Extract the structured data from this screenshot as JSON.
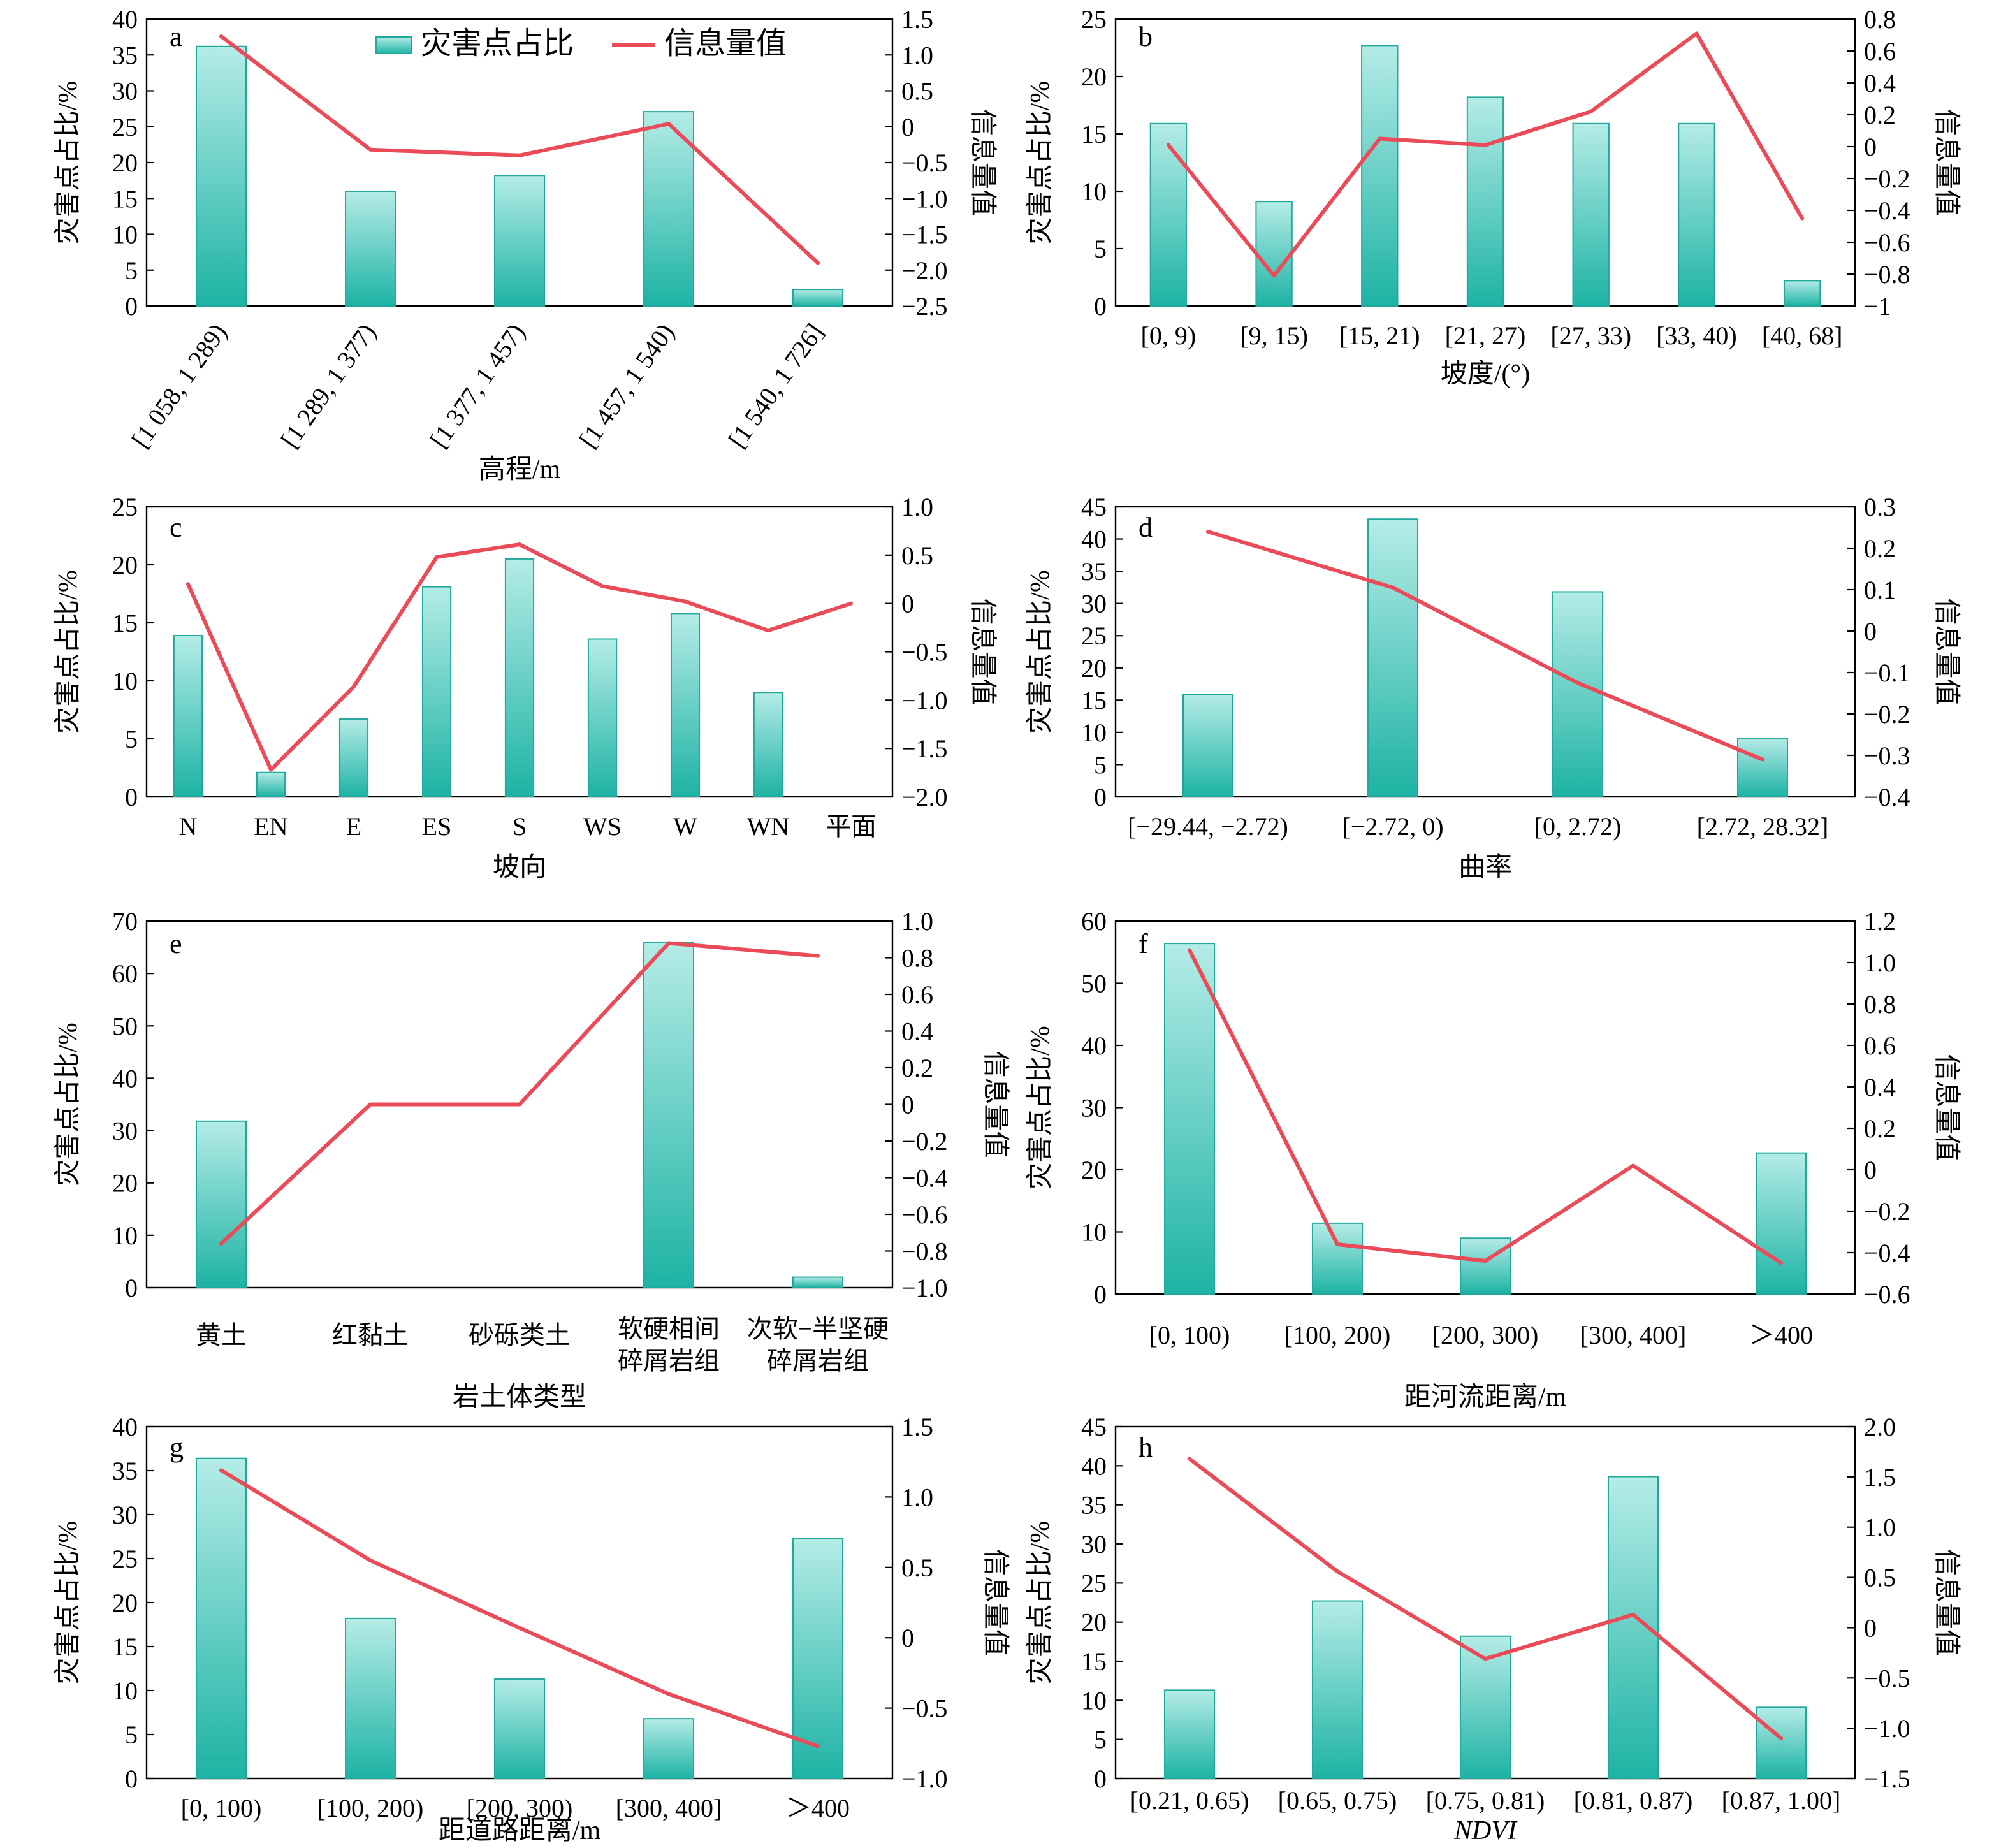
{
  "colors": {
    "bar_top": "#b5ece7",
    "bar_bottom": "#1db3a4",
    "bar_edge": "#22a89a",
    "line": "#ea4b59",
    "axis": "#000000"
  },
  "legend": {
    "bar": "灾害点占比",
    "line": "信息量值"
  },
  "chart_data": [
    {
      "type": "bar",
      "panel": "a",
      "title": "",
      "xlabel": "高程/m",
      "xlabel_italic": false,
      "ylabel": "灾害点占比/%",
      "y2label": "信息量值",
      "categories": [
        "[1 058, 1 289)",
        "[1 289, 1 377)",
        "[1 377, 1 457)",
        "[1 457, 1 540)",
        "[1 540, 1 726]"
      ],
      "category_label_rotated": true,
      "ylim": [
        0,
        40
      ],
      "yticks": [
        0,
        5,
        10,
        15,
        20,
        25,
        30,
        35,
        40
      ],
      "y2lim": [
        -2.5,
        1.5
      ],
      "y2ticks": [
        1.5,
        1.0,
        0.5,
        0,
        -0.5,
        -1.0,
        -1.5,
        -2.0,
        -2.5
      ],
      "y2ticklabels": [
        "1.5",
        "1.0",
        "0.5",
        "0",
        "−0.5",
        "−1.0",
        "−1.5",
        "−2.0",
        "−2.5"
      ],
      "series": [
        {
          "name": "灾害点占比",
          "type": "bar",
          "axis": "left",
          "values": [
            36.2,
            16.0,
            18.2,
            27.1,
            2.3
          ]
        },
        {
          "name": "信息量值",
          "type": "line",
          "axis": "right",
          "values": [
            1.26,
            -0.32,
            -0.4,
            0.04,
            -1.9
          ]
        }
      ],
      "legend_position": "top-center",
      "grid": false
    },
    {
      "type": "bar",
      "panel": "b",
      "title": "",
      "xlabel": "坡度/(°)",
      "xlabel_italic": false,
      "ylabel": "灾害点占比/%",
      "y2label": "信息量值",
      "categories": [
        "[0, 9)",
        "[9, 15)",
        "[15, 21)",
        "[21, 27)",
        "[27, 33)",
        "[33, 40)",
        "[40, 68]"
      ],
      "category_label_rotated": false,
      "ylim": [
        0,
        25
      ],
      "yticks": [
        0,
        5,
        10,
        15,
        20,
        25
      ],
      "y2lim": [
        -1.0,
        0.8
      ],
      "y2ticks": [
        0.8,
        0.6,
        0.4,
        0.2,
        0,
        -0.2,
        -0.4,
        -0.6,
        -0.8,
        -1.0
      ],
      "y2ticklabels": [
        "0.8",
        "0.6",
        "0.4",
        "0.2",
        "0",
        "−0.2",
        "−0.4",
        "−0.6",
        "−0.8",
        "−1"
      ],
      "series": [
        {
          "name": "灾害点占比",
          "type": "bar",
          "axis": "left",
          "values": [
            15.9,
            9.1,
            22.7,
            18.2,
            15.9,
            15.9,
            2.2
          ]
        },
        {
          "name": "信息量值",
          "type": "line",
          "axis": "right",
          "values": [
            0.01,
            -0.81,
            0.05,
            0.01,
            0.22,
            0.71,
            -0.45
          ]
        }
      ],
      "grid": false
    },
    {
      "type": "bar",
      "panel": "c",
      "title": "",
      "xlabel": "坡向",
      "xlabel_italic": false,
      "ylabel": "灾害点占比/%",
      "y2label": "信息量值",
      "categories": [
        "N",
        "EN",
        "E",
        "ES",
        "S",
        "WS",
        "W",
        "WN",
        "平面"
      ],
      "category_label_rotated": false,
      "ylim": [
        0,
        25
      ],
      "yticks": [
        0,
        5,
        10,
        15,
        20,
        25
      ],
      "y2lim": [
        -2.0,
        1.0
      ],
      "y2ticks": [
        1.0,
        0.5,
        0,
        -0.5,
        -1.0,
        -1.5,
        -2.0
      ],
      "y2ticklabels": [
        "1.0",
        "0.5",
        "0",
        "−0.5",
        "−1.0",
        "−1.5",
        "−2.0"
      ],
      "series": [
        {
          "name": "灾害点占比",
          "type": "bar",
          "axis": "left",
          "values": [
            13.9,
            2.1,
            6.7,
            18.1,
            20.5,
            13.6,
            15.8,
            9.0,
            null
          ]
        },
        {
          "name": "信息量值",
          "type": "line",
          "axis": "right",
          "values": [
            0.2,
            -1.72,
            -0.86,
            0.48,
            0.61,
            0.18,
            0.02,
            -0.28,
            0.0
          ]
        }
      ],
      "grid": false
    },
    {
      "type": "bar",
      "panel": "d",
      "title": "",
      "xlabel": "曲率",
      "xlabel_italic": false,
      "ylabel": "灾害点占比/%",
      "y2label": "信息量值",
      "categories": [
        "[−29.44, −2.72)",
        "[−2.72, 0)",
        "[0, 2.72)",
        "[2.72, 28.32]"
      ],
      "category_label_rotated": false,
      "ylim": [
        0,
        45
      ],
      "yticks": [
        0,
        5,
        10,
        15,
        20,
        25,
        30,
        35,
        40,
        45
      ],
      "y2lim": [
        -0.4,
        0.3
      ],
      "y2ticks": [
        0.3,
        0.2,
        0.1,
        0,
        -0.1,
        -0.2,
        -0.3,
        -0.4
      ],
      "y2ticklabels": [
        "0.3",
        "0.2",
        "0.1",
        "0",
        "−0.1",
        "−0.2",
        "−0.3",
        "−0.4"
      ],
      "series": [
        {
          "name": "灾害点占比",
          "type": "bar",
          "axis": "left",
          "values": [
            15.9,
            43.1,
            31.8,
            9.1
          ]
        },
        {
          "name": "信息量值",
          "type": "line",
          "axis": "right",
          "values": [
            0.24,
            0.105,
            -0.125,
            -0.31
          ]
        }
      ],
      "grid": false
    },
    {
      "type": "bar",
      "panel": "e",
      "title": "",
      "xlabel": "岩土体类型",
      "xlabel_italic": false,
      "ylabel": "灾害点占比/%",
      "y2label": "信息量值",
      "categories": [
        "黄土",
        "红黏土",
        "砂砾类土",
        "软硬相间\n碎屑岩组",
        "次软−半坚硬\n碎屑岩组"
      ],
      "category_label_rotated": false,
      "ylim": [
        0,
        70
      ],
      "yticks": [
        0,
        10,
        20,
        30,
        40,
        50,
        60,
        70
      ],
      "y2lim": [
        -1.0,
        1.0
      ],
      "y2ticks": [
        1.0,
        0.8,
        0.6,
        0.4,
        0.2,
        0,
        -0.2,
        -0.4,
        -0.6,
        -0.8,
        -1.0
      ],
      "y2ticklabels": [
        "1.0",
        "0.8",
        "0.6",
        "0.4",
        "0.2",
        "0",
        "−0.2",
        "−0.4",
        "−0.6",
        "−0.8",
        "−1.0"
      ],
      "series": [
        {
          "name": "灾害点占比",
          "type": "bar",
          "axis": "left",
          "values": [
            31.8,
            0,
            0,
            65.9,
            2.0
          ]
        },
        {
          "name": "信息量值",
          "type": "line",
          "axis": "right",
          "values": [
            -0.76,
            0.0,
            0.0,
            0.88,
            0.81
          ]
        }
      ],
      "grid": false
    },
    {
      "type": "bar",
      "panel": "f",
      "title": "",
      "xlabel": "距河流距离/m",
      "xlabel_italic": false,
      "ylabel": "灾害点占比/%",
      "y2label": "信息量值",
      "categories": [
        "[0, 100)",
        "[100, 200)",
        "[200, 300)",
        "[300, 400]",
        "＞400"
      ],
      "category_label_rotated": false,
      "ylim": [
        0,
        60
      ],
      "yticks": [
        0,
        10,
        20,
        30,
        40,
        50,
        60
      ],
      "y2lim": [
        -0.6,
        1.2
      ],
      "y2ticks": [
        1.2,
        1.0,
        0.8,
        0.6,
        0.4,
        0.2,
        0,
        -0.2,
        -0.4,
        -0.6
      ],
      "y2ticklabels": [
        "1.2",
        "1.0",
        "0.8",
        "0.6",
        "0.4",
        "0.2",
        "0",
        "−0.2",
        "−0.4",
        "−0.6"
      ],
      "series": [
        {
          "name": "灾害点占比",
          "type": "bar",
          "axis": "left",
          "values": [
            56.4,
            11.4,
            9.0,
            0,
            22.7
          ]
        },
        {
          "name": "信息量值",
          "type": "line",
          "axis": "right",
          "values": [
            1.06,
            -0.36,
            -0.44,
            0.02,
            -0.45
          ]
        }
      ],
      "grid": false
    },
    {
      "type": "bar",
      "panel": "g",
      "title": "",
      "xlabel": "距道路距离/m",
      "xlabel_italic": false,
      "ylabel": "灾害点占比/%",
      "y2label": "信息量值",
      "categories": [
        "[0, 100)",
        "[100, 200)",
        "[200, 300)",
        "[300, 400]",
        "＞400"
      ],
      "category_label_rotated": false,
      "ylim": [
        0,
        40
      ],
      "yticks": [
        0,
        5,
        10,
        15,
        20,
        25,
        30,
        35,
        40
      ],
      "y2lim": [
        -1.0,
        1.5
      ],
      "y2ticks": [
        1.5,
        1.0,
        0.5,
        0,
        -0.5,
        -1.0
      ],
      "y2ticklabels": [
        "1.5",
        "1.0",
        "0.5",
        "0",
        "−0.5",
        "−1.0"
      ],
      "series": [
        {
          "name": "灾害点占比",
          "type": "bar",
          "axis": "left",
          "values": [
            36.4,
            18.2,
            11.3,
            6.8,
            27.3
          ]
        },
        {
          "name": "信息量值",
          "type": "line",
          "axis": "right",
          "values": [
            1.19,
            0.55,
            0.07,
            -0.4,
            -0.77
          ]
        }
      ],
      "grid": false
    },
    {
      "type": "bar",
      "panel": "h",
      "title": "",
      "xlabel": "NDVI",
      "xlabel_italic": true,
      "ylabel": "灾害点占比/%",
      "y2label": "信息量值",
      "categories": [
        "[0.21, 0.65)",
        "[0.65, 0.75)",
        "[0.75, 0.81)",
        "[0.81, 0.87)",
        "[0.87, 1.00]"
      ],
      "category_label_rotated": false,
      "ylim": [
        0,
        45
      ],
      "yticks": [
        0,
        5,
        10,
        15,
        20,
        25,
        30,
        35,
        40,
        45
      ],
      "y2lim": [
        -1.5,
        2.0
      ],
      "y2ticks": [
        2.0,
        1.5,
        1.0,
        0.5,
        0,
        -0.5,
        -1.0,
        -1.5
      ],
      "y2ticklabels": [
        "2.0",
        "1.5",
        "1.0",
        "0.5",
        "0",
        "−0.5",
        "−1.0",
        "−1.5"
      ],
      "series": [
        {
          "name": "灾害点占比",
          "type": "bar",
          "axis": "left",
          "values": [
            11.3,
            22.7,
            18.2,
            38.6,
            9.1
          ]
        },
        {
          "name": "信息量值",
          "type": "line",
          "axis": "right",
          "values": [
            1.68,
            0.56,
            -0.31,
            0.13,
            -1.1
          ]
        }
      ],
      "grid": false
    }
  ]
}
